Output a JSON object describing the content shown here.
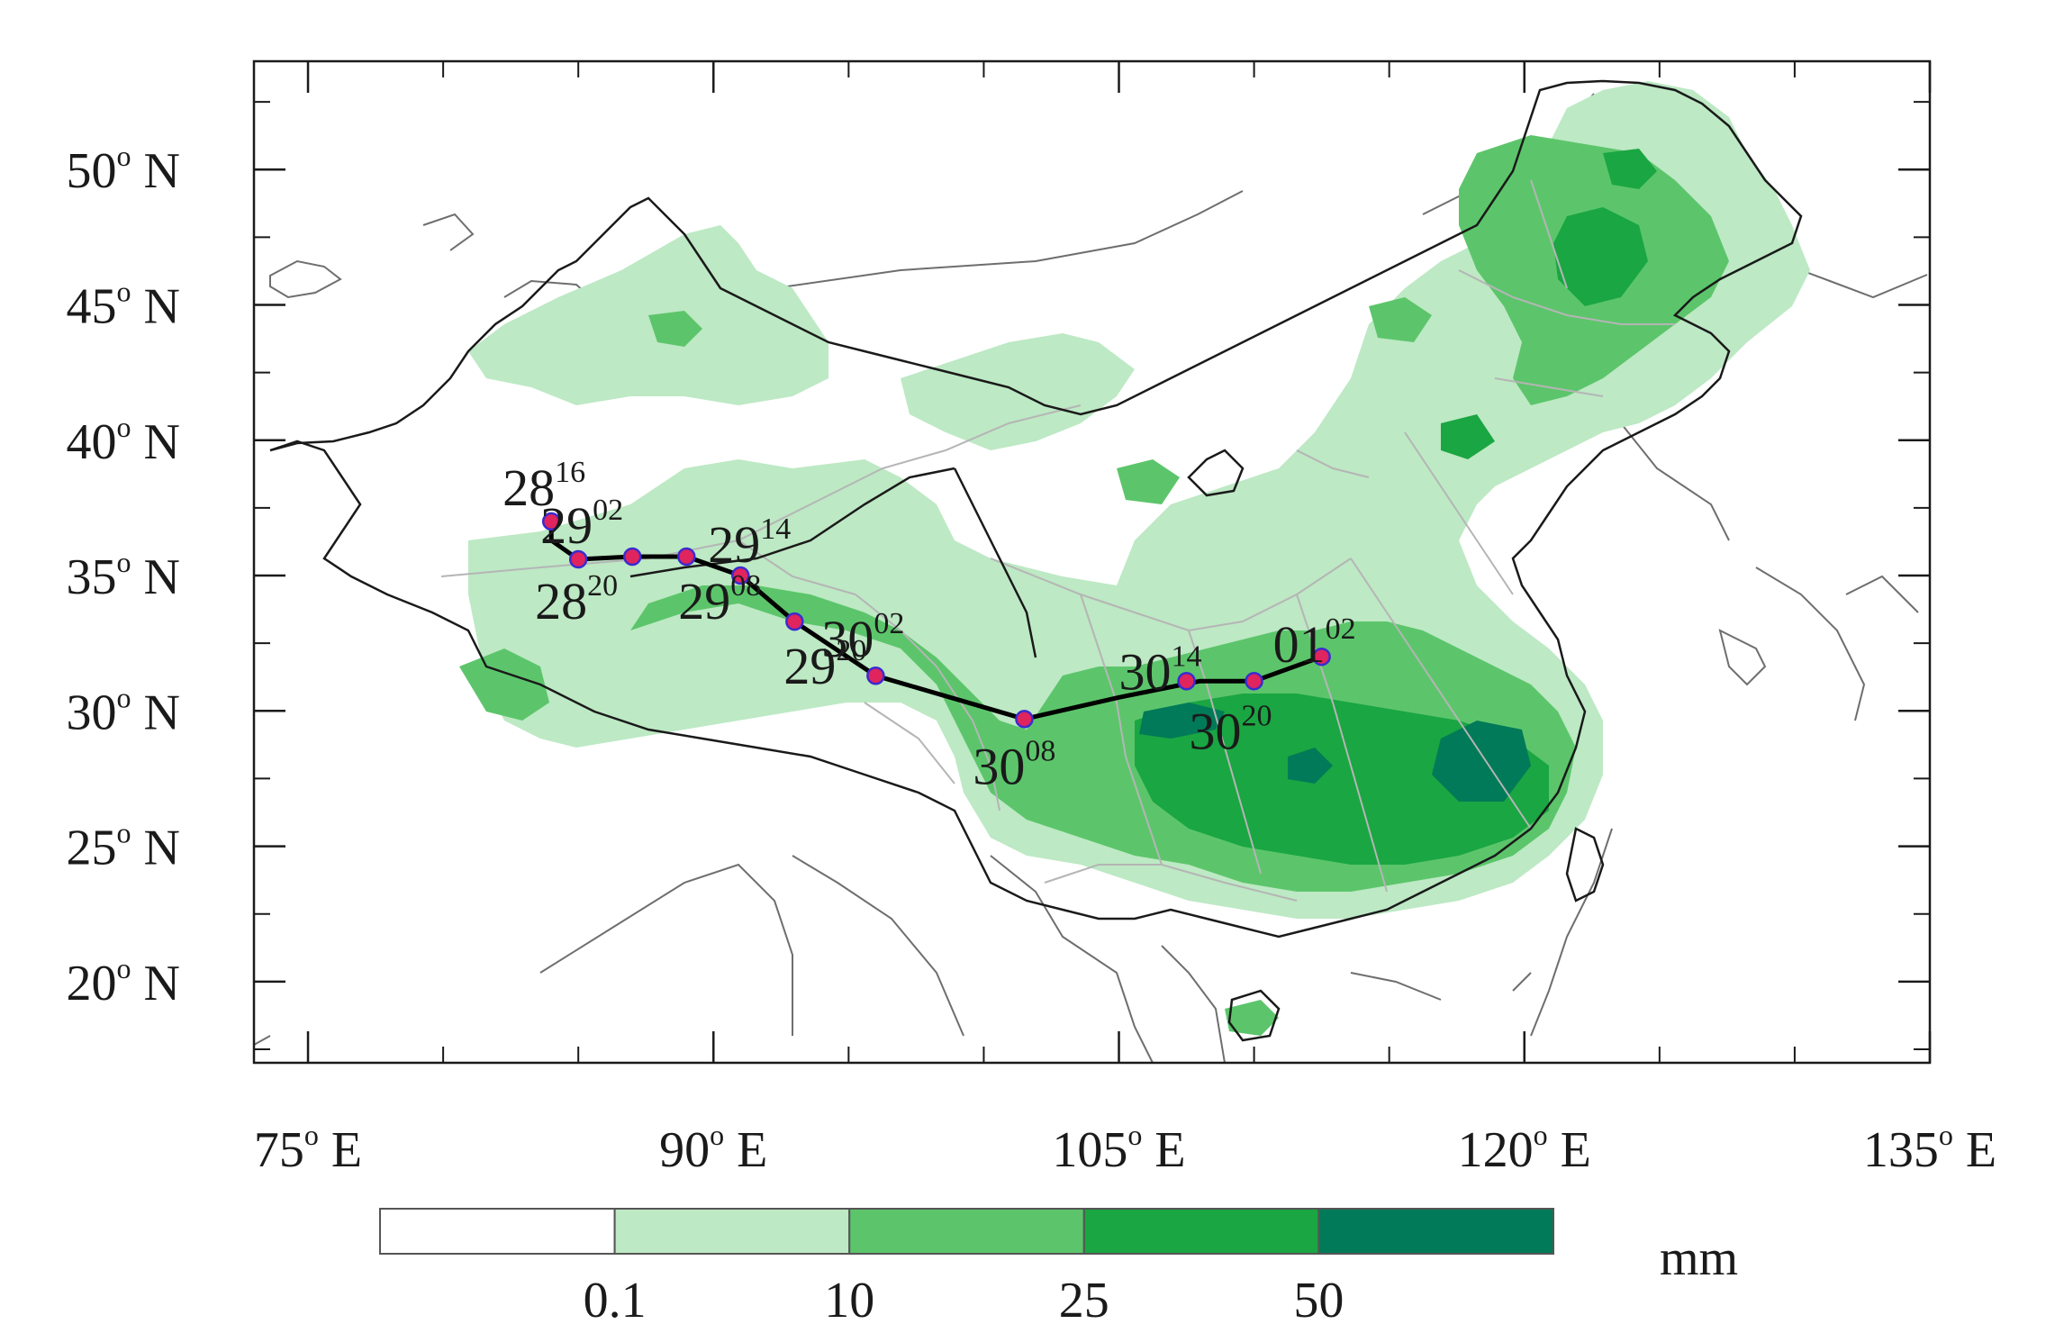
{
  "map": {
    "lon_range": [
      73,
      135
    ],
    "lat_range": [
      17,
      54
    ],
    "x_ticks": [
      {
        "value": 75,
        "label": "75",
        "unit": "o E"
      },
      {
        "value": 90,
        "label": "90",
        "unit": "o E"
      },
      {
        "value": 105,
        "label": "105",
        "unit": "o E"
      },
      {
        "value": 120,
        "label": "120",
        "unit": "o E"
      },
      {
        "value": 135,
        "label": "135",
        "unit": "o E"
      }
    ],
    "y_ticks": [
      {
        "value": 50,
        "label": "50",
        "unit": "o N"
      },
      {
        "value": 45,
        "label": "45",
        "unit": "o N"
      },
      {
        "value": 40,
        "label": "40",
        "unit": "o N"
      },
      {
        "value": 35,
        "label": "35",
        "unit": "o N"
      },
      {
        "value": 30,
        "label": "30",
        "unit": "o N"
      },
      {
        "value": 25,
        "label": "25",
        "unit": "o N"
      },
      {
        "value": 20,
        "label": "20",
        "unit": "o N"
      }
    ],
    "minor_x_ticks": [
      80,
      85,
      95,
      100,
      110,
      115,
      125,
      130
    ],
    "minor_y_ticks": [
      52.5,
      47.5,
      42.5,
      37.5,
      32.5,
      27.5,
      22.5,
      17.5
    ]
  },
  "track": {
    "line_color": "#000000",
    "marker_color": "#e0245e",
    "points": [
      {
        "lon": 84.0,
        "lat": 37.0
      },
      {
        "lon": 84.0,
        "lat": 36.3
      },
      {
        "lon": 85.0,
        "lat": 35.6
      },
      {
        "lon": 87.0,
        "lat": 35.7
      },
      {
        "lon": 89.0,
        "lat": 35.7
      },
      {
        "lon": 91.0,
        "lat": 35.0
      },
      {
        "lon": 93.0,
        "lat": 33.3
      },
      {
        "lon": 96.0,
        "lat": 31.3
      },
      {
        "lon": 101.5,
        "lat": 29.7
      },
      {
        "lon": 105.0,
        "lat": 30.5
      },
      {
        "lon": 108.0,
        "lat": 31.1
      },
      {
        "lon": 110.0,
        "lat": 31.1
      },
      {
        "lon": 112.5,
        "lat": 32.0
      }
    ],
    "markers": [
      {
        "lon": 84.0,
        "lat": 37.0
      },
      {
        "lon": 85.0,
        "lat": 35.6
      },
      {
        "lon": 87.0,
        "lat": 35.7
      },
      {
        "lon": 89.0,
        "lat": 35.7
      },
      {
        "lon": 91.0,
        "lat": 35.0
      },
      {
        "lon": 93.0,
        "lat": 33.3
      },
      {
        "lon": 96.0,
        "lat": 31.3
      },
      {
        "lon": 101.5,
        "lat": 29.7
      },
      {
        "lon": 107.5,
        "lat": 31.1
      },
      {
        "lon": 110.0,
        "lat": 31.1
      },
      {
        "lon": 112.5,
        "lat": 32.0
      }
    ],
    "labels": [
      {
        "day": "28",
        "hour": "16",
        "lon": 82.2,
        "lat": 37.6
      },
      {
        "day": "29",
        "hour": "02",
        "lon": 83.6,
        "lat": 36.2
      },
      {
        "day": "28",
        "hour": "20",
        "lon": 83.4,
        "lat": 33.4
      },
      {
        "day": "29",
        "hour": "14",
        "lon": 89.8,
        "lat": 35.5
      },
      {
        "day": "29",
        "hour": "08",
        "lon": 88.7,
        "lat": 33.4
      },
      {
        "day": "29",
        "hour": "20",
        "lon": 92.6,
        "lat": 31.0
      },
      {
        "day": "30",
        "hour": "02",
        "lon": 94.0,
        "lat": 32.0
      },
      {
        "day": "30",
        "hour": "08",
        "lon": 99.6,
        "lat": 27.3
      },
      {
        "day": "30",
        "hour": "14",
        "lon": 105.0,
        "lat": 30.8
      },
      {
        "day": "30",
        "hour": "20",
        "lon": 107.6,
        "lat": 28.6
      },
      {
        "day": "01",
        "hour": "02",
        "lon": 110.7,
        "lat": 31.8
      }
    ]
  },
  "legend": {
    "unit": "mm",
    "colors": [
      "#ffffff",
      "#bde9c4",
      "#5cc56b",
      "#1aa642",
      "#007a58"
    ],
    "boundaries": [
      "0.1",
      "10",
      "25",
      "50"
    ]
  }
}
